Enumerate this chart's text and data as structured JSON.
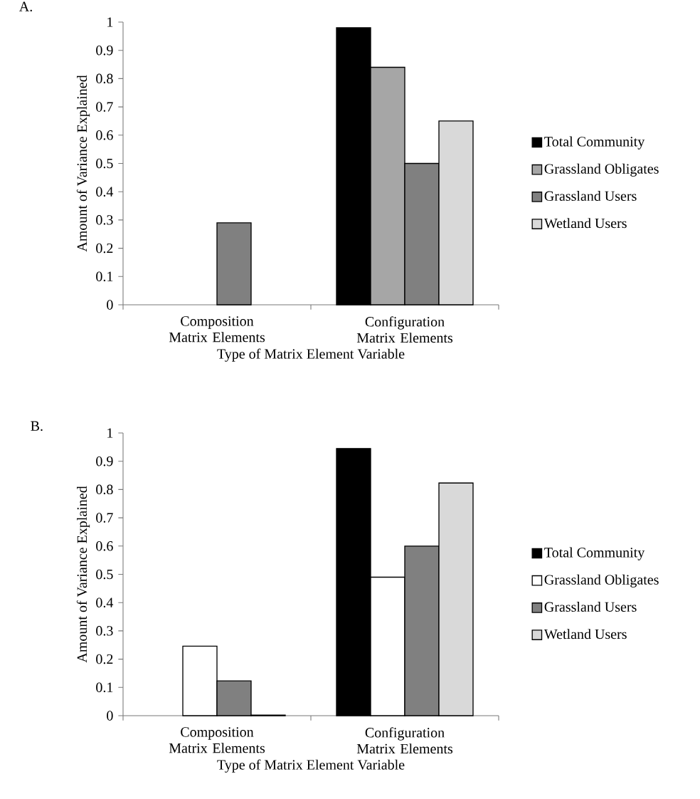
{
  "chart_data": [
    {
      "type": "bar",
      "title": "A.",
      "xlabel": "Type of Matrix Element Variable",
      "ylabel": "Amount of Variance Explained",
      "categories": [
        "Composition Matrix Elements",
        "Configuration Matrix Elements"
      ],
      "series": [
        {
          "name": "Total Community",
          "color": "#000000",
          "values": [
            null,
            0.98
          ]
        },
        {
          "name": "Grassland Obligates",
          "color": "#a6a6a6",
          "values": [
            null,
            0.84
          ]
        },
        {
          "name": "Grassland Users",
          "color": "#808080",
          "values": [
            0.29,
            0.5
          ]
        },
        {
          "name": "Wetland Users",
          "color": "#d9d9d9",
          "values": [
            null,
            0.65
          ]
        }
      ],
      "ylim": [
        0,
        1
      ],
      "yticks": [
        0,
        0.1,
        0.2,
        0.3,
        0.4,
        0.5,
        0.6,
        0.7,
        0.8,
        0.9,
        1
      ],
      "legend": "right"
    },
    {
      "type": "bar",
      "title": "B.",
      "xlabel": "Type of Matrix Element Variable",
      "ylabel": "Amount of Variance Explained",
      "categories": [
        "Composition Matrix Elements",
        "Configuration Matrix Elements"
      ],
      "series": [
        {
          "name": "Total Community",
          "color": "#000000",
          "values": [
            null,
            0.945
          ]
        },
        {
          "name": "Grassland Obligates",
          "color": "#ffffff",
          "values": [
            0.246,
            0.49
          ]
        },
        {
          "name": "Grassland Users",
          "color": "#808080",
          "values": [
            0.123,
            0.6
          ]
        },
        {
          "name": "Wetland Users",
          "color": "#d9d9d9",
          "values": [
            0.002,
            0.823
          ]
        }
      ],
      "ylim": [
        0,
        1
      ],
      "yticks": [
        0,
        0.1,
        0.2,
        0.3,
        0.4,
        0.5,
        0.6,
        0.7,
        0.8,
        0.9,
        1
      ],
      "legend": "right"
    }
  ]
}
